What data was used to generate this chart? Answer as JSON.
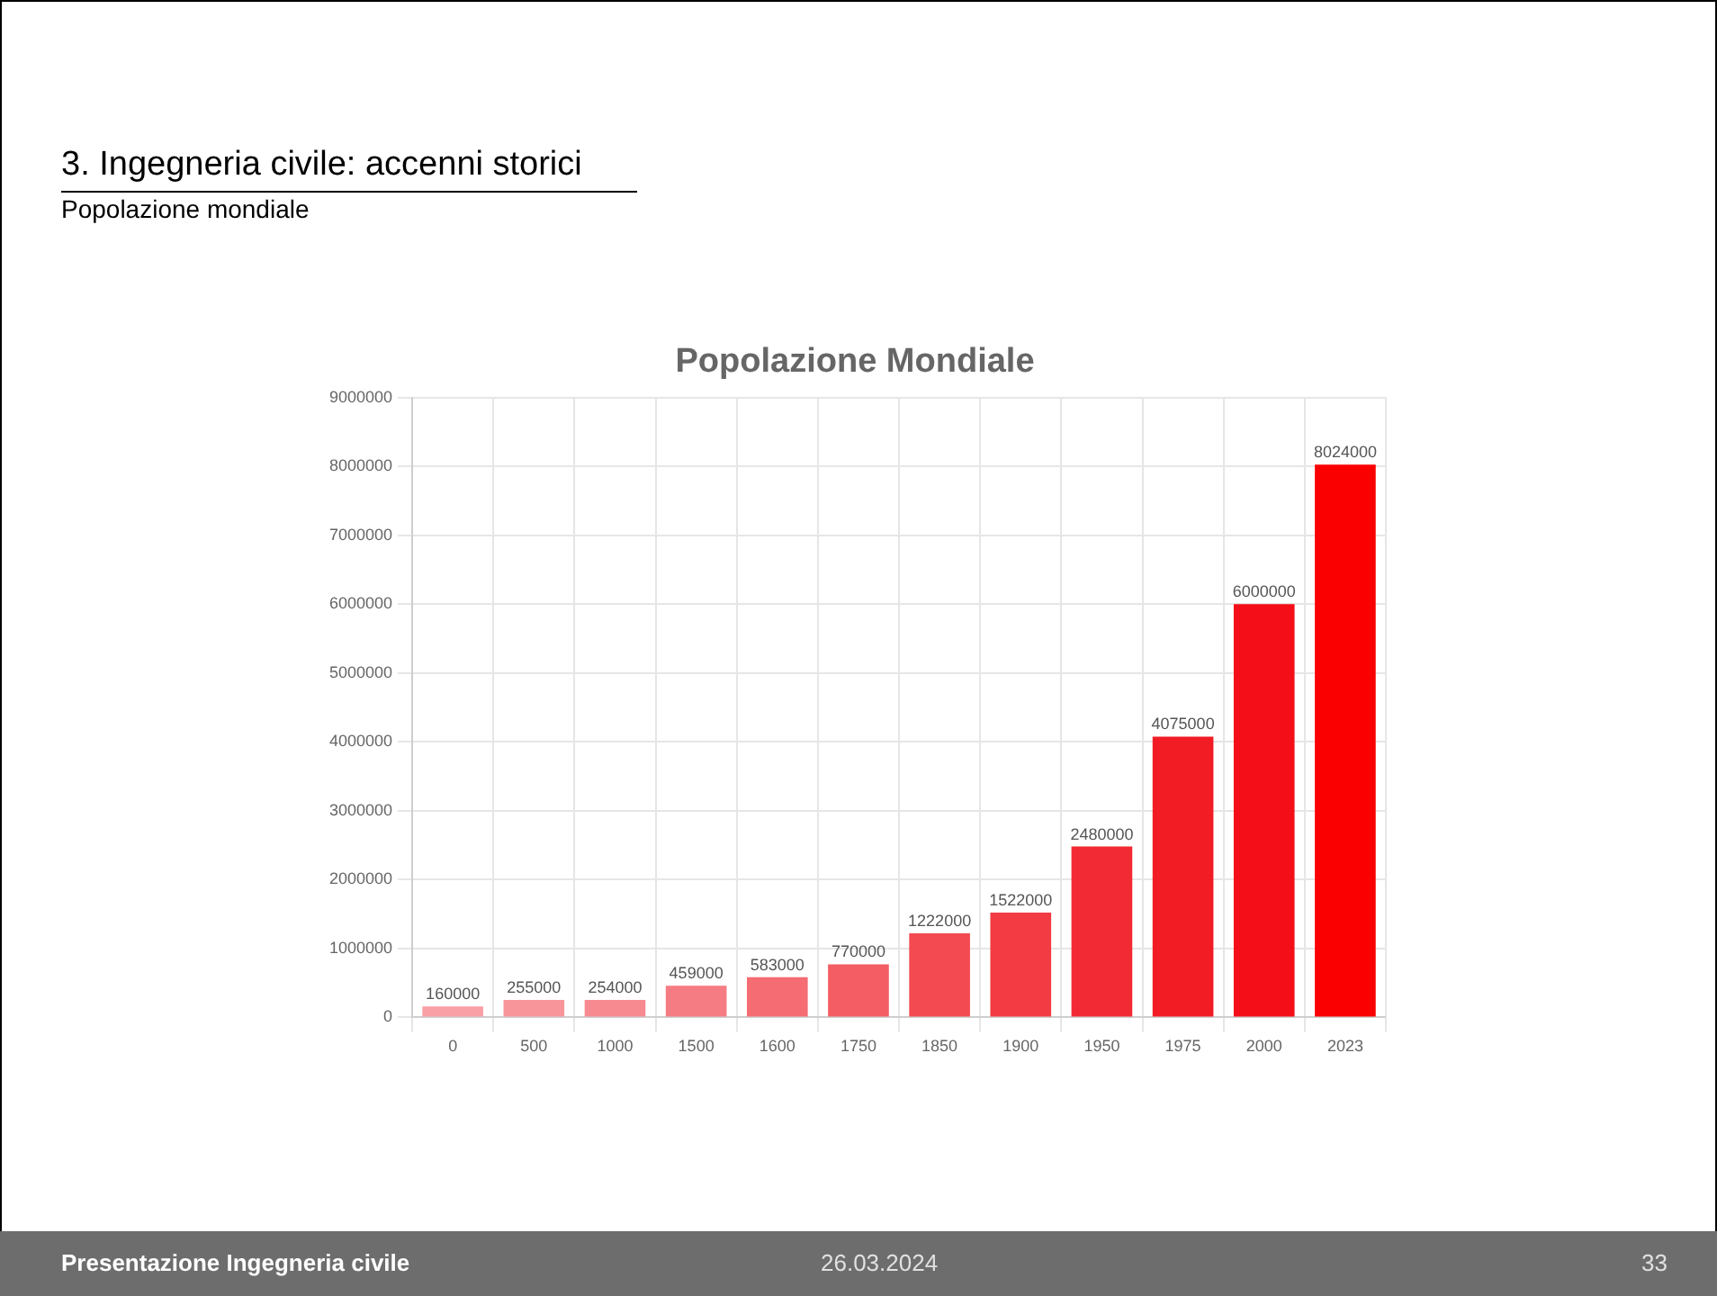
{
  "chart_data": {
    "type": "bar",
    "title": "Popolazione Mondiale",
    "categories": [
      "0",
      "500",
      "1000",
      "1500",
      "1600",
      "1750",
      "1850",
      "1900",
      "1950",
      "1975",
      "2000",
      "2023"
    ],
    "values": [
      160000,
      255000,
      254000,
      459000,
      583000,
      770000,
      1222000,
      1522000,
      2480000,
      4075000,
      6000000,
      8024000
    ],
    "colors": [
      "#f9a0a6",
      "#f8959b",
      "#f78a90",
      "#f67c83",
      "#f56c73",
      "#f45d64",
      "#f34a52",
      "#f23b43",
      "#f22a33",
      "#f21c25",
      "#f40f18",
      "#fb0000"
    ],
    "ylim": [
      0,
      9000000
    ],
    "yticks": [
      0,
      1000000,
      2000000,
      3000000,
      4000000,
      5000000,
      6000000,
      7000000,
      8000000,
      9000000
    ],
    "grid": true,
    "data_labels": true,
    "annotations": [
      "3. Ingegneria civile: accenni storici",
      "Popolazione mondiale",
      "Presentazione Ingegneria civile",
      "26.03.2024",
      "33"
    ]
  }
}
